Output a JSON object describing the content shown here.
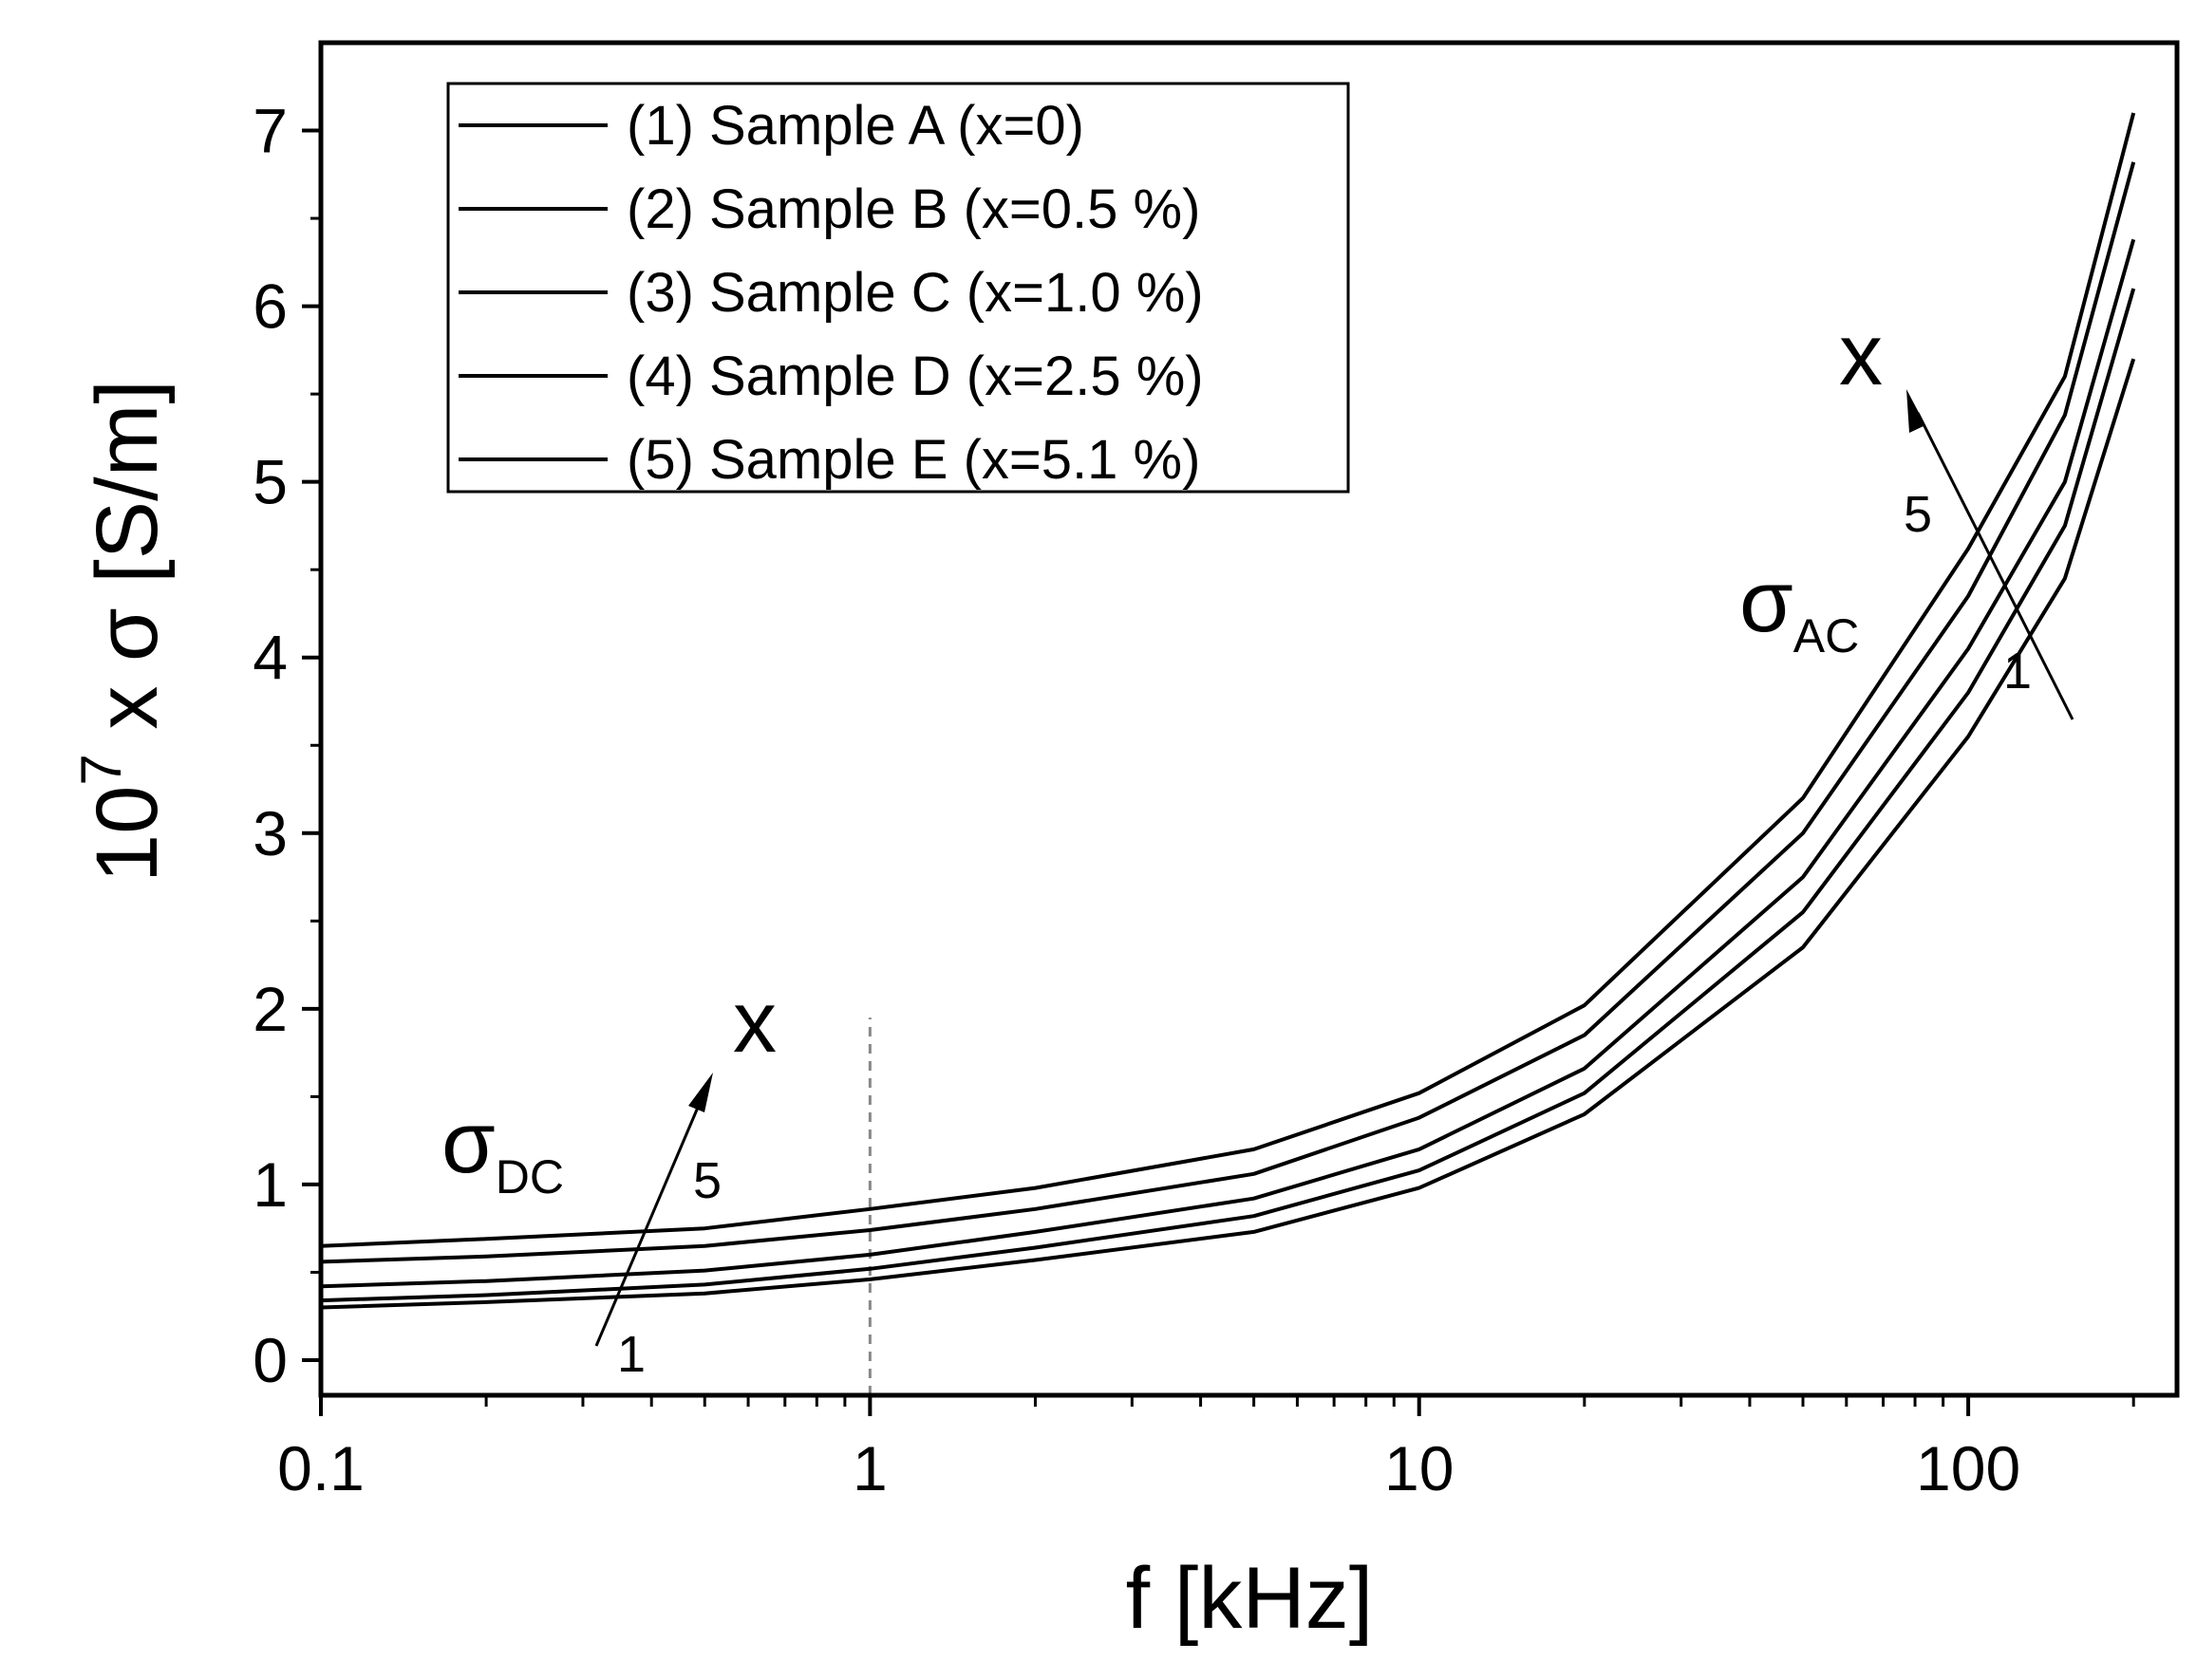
{
  "chart_data": {
    "type": "line",
    "xscale": "log",
    "xlim": [
      0.1,
      240
    ],
    "ylim": [
      -0.2,
      7.5
    ],
    "x_ticks": [
      0.1,
      1,
      10,
      100
    ],
    "x_tick_labels": [
      "0.1",
      "1",
      "10",
      "100"
    ],
    "y_ticks": [
      0,
      1,
      2,
      3,
      4,
      5,
      6,
      7
    ],
    "y_tick_labels": [
      "0",
      "1",
      "2",
      "3",
      "4",
      "5",
      "6",
      "7"
    ],
    "xlabel": "f [kHz]",
    "ylabel": {
      "prefix": "10",
      "exponent": "7",
      "suffix": " x σ [S/m]"
    },
    "x": [
      0.1,
      0.2,
      0.5,
      1,
      2,
      5,
      10,
      20,
      50,
      100,
      150,
      200
    ],
    "series": [
      {
        "name": "(1) Sample A (x=0)",
        "values": [
          0.3,
          0.33,
          0.38,
          0.46,
          0.57,
          0.73,
          0.98,
          1.4,
          2.35,
          3.55,
          4.45,
          5.7
        ]
      },
      {
        "name": "(2) Sample B (x=0.5 %)",
        "values": [
          0.34,
          0.37,
          0.43,
          0.52,
          0.64,
          0.82,
          1.08,
          1.52,
          2.55,
          3.8,
          4.75,
          6.1
        ]
      },
      {
        "name": "(3) Sample C (x=1.0 %)",
        "values": [
          0.42,
          0.45,
          0.51,
          0.6,
          0.73,
          0.92,
          1.2,
          1.66,
          2.75,
          4.05,
          5.0,
          6.38
        ]
      },
      {
        "name": "(4) Sample D (x=2.5 %)",
        "values": [
          0.56,
          0.59,
          0.65,
          0.74,
          0.86,
          1.06,
          1.38,
          1.85,
          3.0,
          4.35,
          5.38,
          6.82
        ]
      },
      {
        "name": "(5) Sample E (x=5.1 %)",
        "values": [
          0.65,
          0.69,
          0.75,
          0.86,
          0.98,
          1.2,
          1.52,
          2.02,
          3.2,
          4.62,
          5.6,
          7.1
        ]
      }
    ],
    "reference_line": {
      "x": 1,
      "style": "dashed",
      "color": "#888888"
    },
    "annotations": {
      "dc_label": {
        "symbol": "σ",
        "subscript": "DC"
      },
      "ac_label": {
        "symbol": "σ",
        "subscript": "AC"
      },
      "dc_arrow": {
        "start_label": "1",
        "end_label": "5",
        "direction_label": "x"
      },
      "ac_arrow": {
        "start_label": "1",
        "end_label": "5",
        "direction_label": "x"
      }
    },
    "legend": {
      "position": "top-left"
    }
  }
}
